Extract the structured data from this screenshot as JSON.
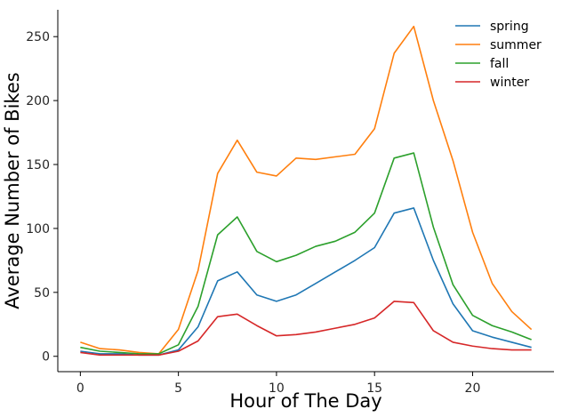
{
  "chart_data": {
    "type": "line",
    "title": "",
    "xlabel": "Hour of The Day",
    "ylabel": "Average Number of Bikes",
    "xlim": [
      -1.15,
      24.15
    ],
    "ylim": [
      -12,
      271
    ],
    "xticks": [
      0,
      5,
      10,
      15,
      20
    ],
    "yticks": [
      0,
      50,
      100,
      150,
      200,
      250
    ],
    "grid": false,
    "legend_position": "top-right",
    "x": [
      0,
      1,
      2,
      3,
      4,
      5,
      6,
      7,
      8,
      9,
      10,
      11,
      12,
      13,
      14,
      15,
      16,
      17,
      18,
      19,
      20,
      21,
      22,
      23
    ],
    "series": [
      {
        "name": "spring",
        "color": "#1f77b4",
        "values": [
          4,
          2,
          2,
          1,
          1,
          5,
          23,
          59,
          66,
          48,
          43,
          48,
          57,
          66,
          75,
          85,
          112,
          116,
          75,
          41,
          20,
          15,
          11,
          7
        ]
      },
      {
        "name": "summer",
        "color": "#ff7f0e",
        "values": [
          11,
          6,
          5,
          3,
          2,
          21,
          67,
          143,
          169,
          144,
          141,
          155,
          154,
          156,
          158,
          178,
          237,
          258,
          200,
          153,
          97,
          57,
          35,
          21
        ]
      },
      {
        "name": "fall",
        "color": "#2ca02c",
        "values": [
          7,
          4,
          3,
          2,
          2,
          9,
          39,
          95,
          109,
          82,
          74,
          79,
          86,
          90,
          97,
          112,
          155,
          159,
          101,
          56,
          32,
          24,
          19,
          13
        ]
      },
      {
        "name": "winter",
        "color": "#d62728",
        "values": [
          3,
          1,
          1,
          1,
          1,
          4,
          12,
          31,
          33,
          24,
          16,
          17,
          19,
          22,
          25,
          30,
          43,
          42,
          20,
          11,
          8,
          6,
          5,
          5
        ]
      }
    ]
  }
}
